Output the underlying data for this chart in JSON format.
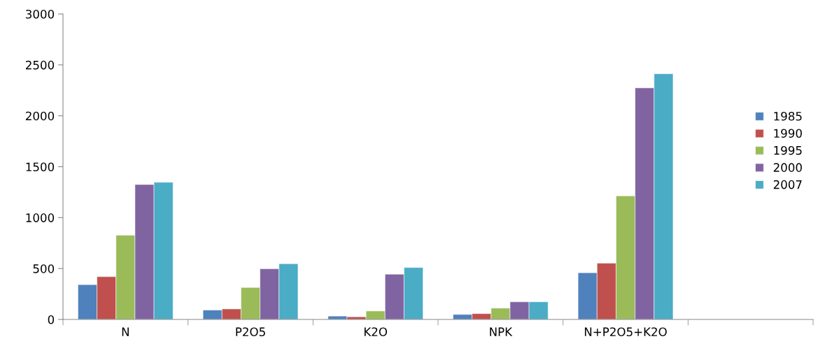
{
  "chart_data": {
    "type": "bar",
    "categories": [
      "N",
      "P2O5",
      "K2O",
      "NPK",
      "N+P2O5+K2O",
      null
    ],
    "series": [
      {
        "name": "1985",
        "color": "#4f81bd",
        "values": [
          342,
          92,
          33,
          49,
          459,
          null
        ]
      },
      {
        "name": "1990",
        "color": "#c0504d",
        "values": [
          420,
          103,
          26,
          57,
          553,
          null
        ]
      },
      {
        "name": "1995",
        "color": "#9bbb59",
        "values": [
          827,
          314,
          83,
          111,
          1214,
          null
        ]
      },
      {
        "name": "2000",
        "color": "#8064a2",
        "values": [
          1325,
          497,
          444,
          173,
          2274,
          null
        ]
      },
      {
        "name": "2007",
        "color": "#4bacc6",
        "values": [
          1347,
          547,
          510,
          173,
          2413,
          null
        ]
      }
    ],
    "ylim": [
      0,
      3000
    ],
    "yticks": [
      0,
      500,
      1000,
      1500,
      2000,
      2500,
      3000
    ],
    "grid": false,
    "legend": "right"
  }
}
